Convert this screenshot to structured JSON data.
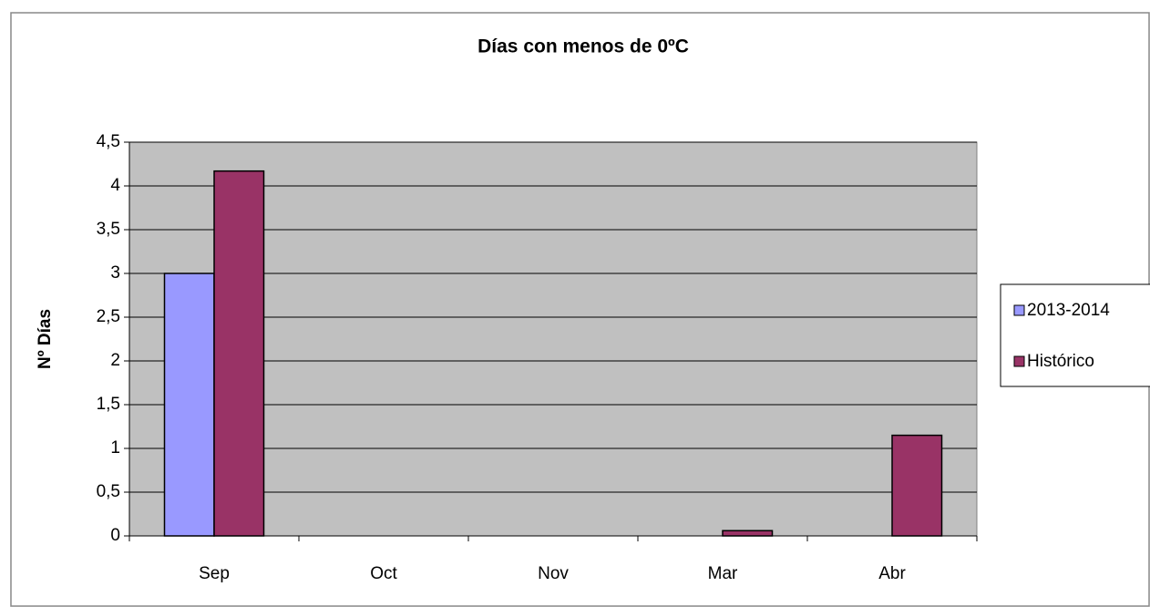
{
  "chart_data": {
    "type": "bar",
    "title": "Días con menos de 0ºC",
    "y_label": "Nº Días",
    "categories": [
      "Sep",
      "Oct",
      "Nov",
      "Mar",
      "Abr"
    ],
    "series": [
      {
        "name": "2013-2014",
        "color": "#9999ff",
        "values": [
          3,
          0,
          0,
          0,
          0
        ]
      },
      {
        "name": "Histórico",
        "color": "#993366",
        "values": [
          4.17,
          0,
          0,
          0.06,
          1.15
        ]
      }
    ],
    "ylim": [
      0,
      4.5
    ],
    "yticks": [
      0,
      {
        "value": 0.5,
        "label": "0,5"
      },
      1,
      {
        "value": 1.5,
        "label": "1,5"
      },
      2,
      {
        "value": 2.5,
        "label": "2,5"
      },
      3,
      {
        "value": 3.5,
        "label": "3,5"
      },
      4,
      {
        "value": 4.5,
        "label": "4,5"
      }
    ],
    "grid": true,
    "legend": "right"
  }
}
